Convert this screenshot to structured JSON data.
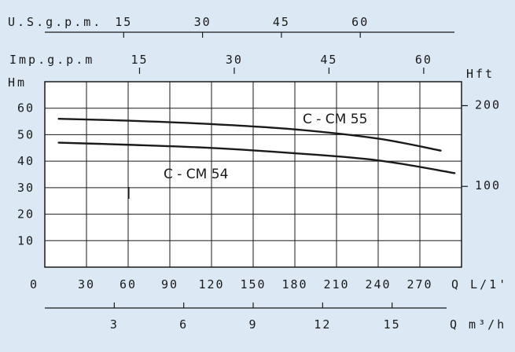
{
  "chart_data": {
    "type": "line",
    "xlabel": "Q L/1'",
    "ylabel": "Hm",
    "xlim": [
      0,
      300
    ],
    "ylim": [
      0,
      70
    ],
    "x_ticks": [
      30,
      60,
      90,
      120,
      150,
      180,
      210,
      240,
      270
    ],
    "x_tick_labels": [
      "30",
      "60",
      "90",
      "120",
      "150",
      "180",
      "210",
      "240",
      "270"
    ],
    "y_ticks": [
      10,
      20,
      30,
      40,
      50,
      60
    ],
    "y_tick_labels": [
      "10",
      "20",
      "30",
      "40",
      "50",
      "60"
    ],
    "origin_label": "0",
    "grid": true,
    "series": [
      {
        "name": "C - CM 55",
        "x": [
          10,
          60,
          120,
          180,
          240,
          285
        ],
        "y": [
          56,
          55.3,
          54,
          52,
          48.5,
          44
        ]
      },
      {
        "name": "C - CM 54",
        "x": [
          10,
          60,
          120,
          180,
          240,
          295
        ],
        "y": [
          47,
          46.2,
          45,
          43,
          40.3,
          35.5
        ]
      }
    ],
    "secondary_axes": {
      "us_gpm": {
        "label": "U.S.g.p.m.",
        "ticks": [
          15,
          30,
          45,
          60
        ],
        "tick_labels": [
          "15",
          "30",
          "45",
          "60"
        ],
        "lpm_per_unit": 3.785
      },
      "imp_gpm": {
        "label": "Imp.g.p.m",
        "ticks": [
          15,
          30,
          45,
          60
        ],
        "tick_labels": [
          "15",
          "30",
          "45",
          "60"
        ],
        "lpm_per_unit": 4.546
      },
      "m3h": {
        "label": "Q m³/h",
        "ticks": [
          3,
          6,
          9,
          12,
          15
        ],
        "tick_labels": [
          "3",
          "6",
          "9",
          "12",
          "15"
        ],
        "lpm_per_unit": 16.667
      },
      "hft": {
        "label": "Hft",
        "ticks": [
          100,
          200
        ],
        "tick_labels": [
          "100",
          "200"
        ],
        "m_per_unit": 0.3048
      }
    }
  }
}
